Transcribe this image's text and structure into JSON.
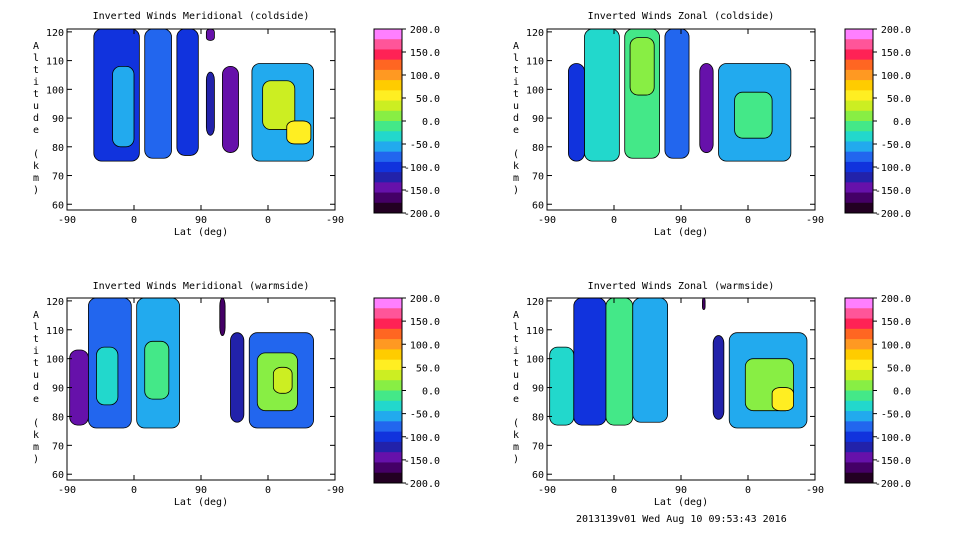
{
  "footer": "2013139v01 Wed Aug 10 09:53:43 2016",
  "colorbar": {
    "ticks": [
      "200.0",
      "150.0",
      "100.0",
      "50.0",
      "0.0",
      "-50.0",
      "-100.0",
      "-150.0",
      "-200.0"
    ],
    "colors": [
      "#ff7fff",
      "#ff5599",
      "#ff2255",
      "#ff6622",
      "#ff9922",
      "#ffcc00",
      "#ffee22",
      "#ccee22",
      "#88ee44",
      "#44e888",
      "#22d8cc",
      "#22aaee",
      "#2266ee",
      "#1133dd",
      "#2222aa",
      "#6611aa",
      "#440066",
      "#220022"
    ]
  },
  "chart_data": [
    {
      "type": "heatmap",
      "title": "Inverted Winds Meridional (coldside)",
      "xlabel": "Lat (deg)",
      "ylabel": "Altitude (km)",
      "x_ticks": [
        "-90",
        "0",
        "90",
        "0",
        "-90"
      ],
      "y_ticks": [
        "120",
        "110",
        "100",
        "90",
        "80",
        "70",
        "60"
      ],
      "ylim": [
        58,
        121
      ],
      "zlim": [
        -200,
        200
      ],
      "blocks": [
        {
          "x0": 0.1,
          "x1": 0.27,
          "y0": 75,
          "y1": 121,
          "value": -95
        },
        {
          "x0": 0.17,
          "x1": 0.25,
          "y0": 80,
          "y1": 108,
          "value": -60
        },
        {
          "x0": 0.29,
          "x1": 0.39,
          "y0": 76,
          "y1": 121,
          "value": -80
        },
        {
          "x0": 0.41,
          "x1": 0.49,
          "y0": 77,
          "y1": 121,
          "value": -90
        },
        {
          "x0": 0.52,
          "x1": 0.55,
          "y0": 117,
          "y1": 121,
          "value": -150
        },
        {
          "x0": 0.52,
          "x1": 0.55,
          "y0": 84,
          "y1": 106,
          "value": -130
        },
        {
          "x0": 0.58,
          "x1": 0.64,
          "y0": 78,
          "y1": 108,
          "value": -140
        },
        {
          "x0": 0.69,
          "x1": 0.92,
          "y0": 75,
          "y1": 109,
          "value": -45
        },
        {
          "x0": 0.73,
          "x1": 0.85,
          "y0": 86,
          "y1": 103,
          "value": 25
        },
        {
          "x0": 0.82,
          "x1": 0.91,
          "y0": 81,
          "y1": 89,
          "value": 55
        }
      ]
    },
    {
      "type": "heatmap",
      "title": "Inverted Winds Zonal (coldside)",
      "xlabel": "Lat (deg)",
      "ylabel": "Altitude (km)",
      "x_ticks": [
        "-90",
        "0",
        "90",
        "0",
        "-90"
      ],
      "y_ticks": [
        "120",
        "110",
        "100",
        "90",
        "80",
        "70",
        "60"
      ],
      "ylim": [
        58,
        121
      ],
      "zlim": [
        -200,
        200
      ],
      "blocks": [
        {
          "x0": 0.08,
          "x1": 0.14,
          "y0": 75,
          "y1": 109,
          "value": -110
        },
        {
          "x0": 0.14,
          "x1": 0.27,
          "y0": 75,
          "y1": 121,
          "value": -40
        },
        {
          "x0": 0.29,
          "x1": 0.42,
          "y0": 76,
          "y1": 121,
          "value": -20
        },
        {
          "x0": 0.31,
          "x1": 0.4,
          "y0": 98,
          "y1": 118,
          "value": 20
        },
        {
          "x0": 0.44,
          "x1": 0.53,
          "y0": 76,
          "y1": 121,
          "value": -70
        },
        {
          "x0": 0.57,
          "x1": 0.62,
          "y0": 78,
          "y1": 109,
          "value": -140
        },
        {
          "x0": 0.64,
          "x1": 0.91,
          "y0": 75,
          "y1": 109,
          "value": -60
        },
        {
          "x0": 0.7,
          "x1": 0.84,
          "y0": 83,
          "y1": 99,
          "value": -10
        }
      ]
    },
    {
      "type": "heatmap",
      "title": "Inverted Winds Meridional (warmside)",
      "xlabel": "Lat (deg)",
      "ylabel": "Altitude (km)",
      "x_ticks": [
        "-90",
        "0",
        "90",
        "0",
        "-90"
      ],
      "y_ticks": [
        "120",
        "110",
        "100",
        "90",
        "80",
        "70",
        "60"
      ],
      "ylim": [
        58,
        121
      ],
      "zlim": [
        -200,
        200
      ],
      "blocks": [
        {
          "x0": 0.01,
          "x1": 0.08,
          "y0": 77,
          "y1": 103,
          "value": -150
        },
        {
          "x0": 0.08,
          "x1": 0.24,
          "y0": 76,
          "y1": 121,
          "value": -80
        },
        {
          "x0": 0.11,
          "x1": 0.19,
          "y0": 84,
          "y1": 104,
          "value": -30
        },
        {
          "x0": 0.26,
          "x1": 0.42,
          "y0": 76,
          "y1": 121,
          "value": -60
        },
        {
          "x0": 0.29,
          "x1": 0.38,
          "y0": 86,
          "y1": 106,
          "value": -5
        },
        {
          "x0": 0.57,
          "x1": 0.59,
          "y0": 108,
          "y1": 121,
          "value": -160
        },
        {
          "x0": 0.61,
          "x1": 0.66,
          "y0": 78,
          "y1": 109,
          "value": -130
        },
        {
          "x0": 0.68,
          "x1": 0.92,
          "y0": 76,
          "y1": 109,
          "value": -70
        },
        {
          "x0": 0.71,
          "x1": 0.86,
          "y0": 82,
          "y1": 102,
          "value": 10
        },
        {
          "x0": 0.77,
          "x1": 0.84,
          "y0": 88,
          "y1": 97,
          "value": 40
        }
      ]
    },
    {
      "type": "heatmap",
      "title": "Inverted Winds Zonal (warmside)",
      "xlabel": "Lat (deg)",
      "ylabel": "Altitude (km)",
      "x_ticks": [
        "-90",
        "0",
        "90",
        "0",
        "-90"
      ],
      "y_ticks": [
        "120",
        "110",
        "100",
        "90",
        "80",
        "70",
        "60"
      ],
      "ylim": [
        58,
        121
      ],
      "zlim": [
        -200,
        200
      ],
      "blocks": [
        {
          "x0": 0.01,
          "x1": 0.1,
          "y0": 77,
          "y1": 104,
          "value": -30
        },
        {
          "x0": 0.1,
          "x1": 0.22,
          "y0": 77,
          "y1": 121,
          "value": -90
        },
        {
          "x0": 0.22,
          "x1": 0.32,
          "y0": 77,
          "y1": 121,
          "value": -20
        },
        {
          "x0": 0.32,
          "x1": 0.45,
          "y0": 78,
          "y1": 121,
          "value": -50
        },
        {
          "x0": 0.58,
          "x1": 0.59,
          "y0": 117,
          "y1": 121,
          "value": -160
        },
        {
          "x0": 0.62,
          "x1": 0.66,
          "y0": 79,
          "y1": 108,
          "value": -120
        },
        {
          "x0": 0.68,
          "x1": 0.97,
          "y0": 76,
          "y1": 109,
          "value": -60
        },
        {
          "x0": 0.74,
          "x1": 0.92,
          "y0": 82,
          "y1": 100,
          "value": 20
        },
        {
          "x0": 0.84,
          "x1": 0.92,
          "y0": 82,
          "y1": 90,
          "value": 60
        }
      ]
    }
  ]
}
